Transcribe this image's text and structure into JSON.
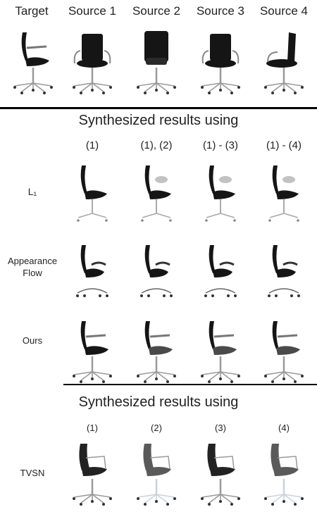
{
  "header": {
    "columns": [
      "Target",
      "Source 1",
      "Source 2",
      "Source 3",
      "Source 4"
    ]
  },
  "section1": {
    "title": "Synthesized results using",
    "indices": [
      "(1)",
      "(1), (2)",
      "(1) - (3)",
      "(1) - (4)"
    ],
    "rows": [
      {
        "label": "L₁"
      },
      {
        "label_line1": "Appearance",
        "label_line2": "Flow"
      },
      {
        "label": "Ours"
      }
    ]
  },
  "section2": {
    "title": "Synthesized results using",
    "indices": [
      "(1)",
      "(2)",
      "(3)",
      "(4)"
    ],
    "rows": [
      {
        "label": "TVSN"
      }
    ]
  },
  "colors": {
    "chair_dark": "#151515",
    "chair_mid": "#2a2a2a",
    "metal": "#9a9a9a",
    "divider": "#000000"
  }
}
